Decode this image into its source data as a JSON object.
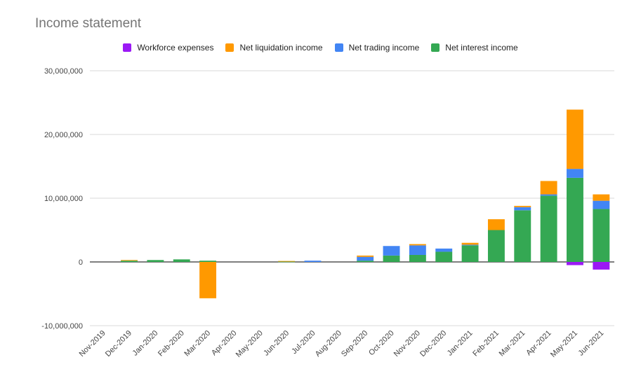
{
  "chart_data": {
    "type": "bar",
    "stacked": true,
    "title": "Income statement",
    "xlabel": "",
    "ylabel": "",
    "ylim": [
      -10000000,
      30000000
    ],
    "yticks": [
      "30,000,000",
      "20,000,000",
      "10,000,000",
      "0",
      "-10,000,000"
    ],
    "ytick_values": [
      30000000,
      20000000,
      10000000,
      0,
      -10000000
    ],
    "grid": true,
    "legend_position": "top",
    "categories": [
      "Nov-2019",
      "Dec-2019",
      "Jan-2020",
      "Feb-2020",
      "Mar-2020",
      "Apr-2020",
      "May-2020",
      "Jun-2020",
      "Jul-2020",
      "Aug-2020",
      "Sep-2020",
      "Oct-2020",
      "Nov-2020",
      "Dec-2020",
      "Jan-2021",
      "Feb-2021",
      "Mar-2021",
      "Apr-2021",
      "May-2021",
      "Jun-2021"
    ],
    "series": [
      {
        "name": "Workforce expenses",
        "color": "#9b19f5",
        "values": [
          0,
          0,
          0,
          0,
          0,
          0,
          0,
          0,
          0,
          0,
          0,
          0,
          0,
          0,
          0,
          0,
          0,
          0,
          -500000,
          -1200000
        ]
      },
      {
        "name": "Net liquidation income",
        "color": "#ff9900",
        "values": [
          0,
          100000,
          0,
          0,
          -5700000,
          0,
          0,
          100000,
          0,
          0,
          200000,
          0,
          200000,
          0,
          300000,
          1700000,
          200000,
          2100000,
          9300000,
          1000000
        ]
      },
      {
        "name": "Net trading income",
        "color": "#4285f4",
        "values": [
          0,
          0,
          0,
          0,
          0,
          0,
          0,
          0,
          200000,
          0,
          600000,
          1500000,
          1500000,
          500000,
          100000,
          0,
          500000,
          200000,
          1400000,
          1300000
        ]
      },
      {
        "name": "Net interest income",
        "color": "#34a853",
        "values": [
          0,
          200000,
          300000,
          400000,
          200000,
          0,
          0,
          50000,
          0,
          0,
          200000,
          1000000,
          1100000,
          1600000,
          2600000,
          5000000,
          8100000,
          10400000,
          13200000,
          8300000
        ]
      }
    ]
  }
}
